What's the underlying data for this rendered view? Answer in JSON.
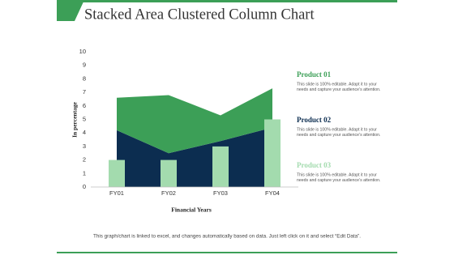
{
  "chart_data": {
    "type": "area-column",
    "title": "Stacked Area Clustered Column Chart",
    "y_label": "In percentage",
    "x_label": "Financial Years",
    "footnote": "This graph/chart is linked to excel, and changes automatically based on data. Just left click on it and select “Edit Data”.",
    "categories": [
      "FY01",
      "FY02",
      "FY03",
      "FY04"
    ],
    "series": [
      {
        "name": "Product 01",
        "kind": "area",
        "color": "#3c9f57",
        "values": [
          2.4,
          4.3,
          1.9,
          2.9
        ],
        "description": [
          "This slide is 100% editable. Adapt it to your",
          "needs and capture your audience’s attention."
        ]
      },
      {
        "name": "Product 02",
        "kind": "area",
        "color": "#0c2d50",
        "values": [
          4.2,
          2.5,
          3.4,
          4.4
        ],
        "description": [
          "This slide is 100% editable. Adapt it to your",
          "needs and capture your audience’s attention."
        ]
      },
      {
        "name": "Product 03",
        "kind": "column",
        "color": "#a3dbae",
        "values": [
          2,
          2,
          3,
          5
        ],
        "description": [
          "This slide is 100% editable. Adapt it to your",
          "needs and capture your audience’s attention."
        ]
      }
    ],
    "ylim": [
      0,
      10
    ],
    "yticks": [
      0,
      1,
      2,
      3,
      4,
      5,
      6,
      7,
      8,
      9,
      10
    ]
  }
}
